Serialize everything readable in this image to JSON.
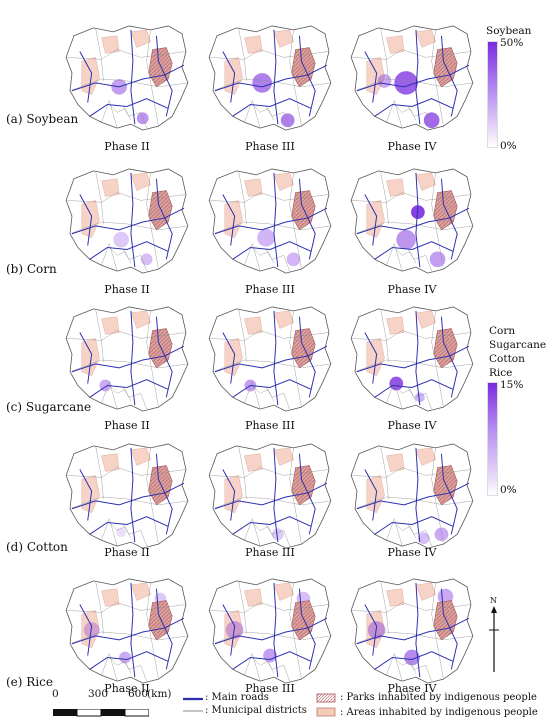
{
  "rows": [
    {
      "label": "(a) Soybean",
      "crop": "soybean"
    },
    {
      "label": "(b) Corn",
      "crop": "corn"
    },
    {
      "label": "(c) Sugarcane",
      "crop": "sugarcane"
    },
    {
      "label": "(d) Cotton",
      "crop": "cotton"
    },
    {
      "label": "(e) Rice",
      "crop": "rice"
    }
  ],
  "phases": [
    "Phase II",
    "Phase III",
    "Phase IV"
  ],
  "legend_soybean": {
    "title": "Soybean",
    "max_label": "50%",
    "min_label": "0%"
  },
  "legend_others": {
    "titles": [
      "Corn",
      "Sugarcane",
      "Cotton",
      "Rice"
    ],
    "max_label": "15%",
    "min_label": "0%"
  },
  "north_label": "N",
  "scale_bar": {
    "ticks": [
      "0",
      "300",
      "600"
    ],
    "unit": "(km)"
  },
  "key": {
    "main_roads": ": Main roads",
    "municipal_districts": ": Municipal districts",
    "parks": ": Parks inhabited by indigenous people",
    "areas": ": Areas inhabited by indigenous people"
  },
  "colors": {
    "road": "#2a2fb0",
    "district_line": "#8a8a8a",
    "indigenous_area": "#f4c9b8",
    "indigenous_park": "#d9a3a0",
    "purple_strong": "#7a2be0",
    "purple_light": "#eadcf8"
  }
}
